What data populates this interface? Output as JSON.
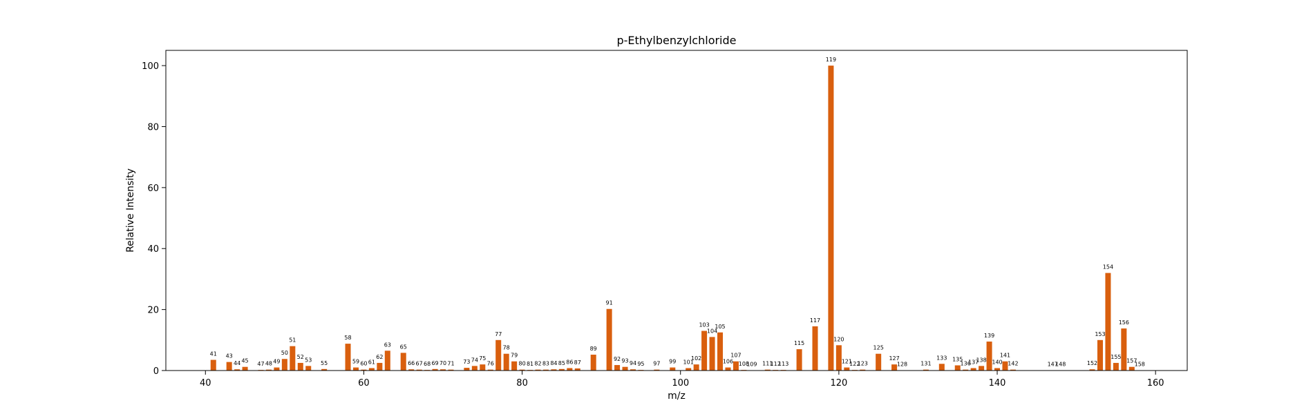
{
  "chart_data": {
    "type": "bar",
    "title": "p-Ethylbenzylchloride",
    "xlabel": "m/z",
    "ylabel": "Relative Intensity",
    "xlim": [
      35,
      164
    ],
    "ylim": [
      0,
      105
    ],
    "xticks": [
      "40",
      "60",
      "80",
      "100",
      "120",
      "140",
      "160"
    ],
    "yticks": [
      "0",
      "20",
      "40",
      "60",
      "80",
      "100"
    ],
    "grid": false,
    "bar_color": "#d95f0e",
    "series": [
      {
        "x": [
          41,
          43,
          44,
          45,
          47,
          48,
          49,
          50,
          51,
          52,
          53,
          55,
          58,
          59,
          60,
          61,
          62,
          63,
          65,
          66,
          67,
          68,
          69,
          70,
          71,
          73,
          74,
          75,
          76,
          77,
          78,
          79,
          80,
          81,
          82,
          83,
          84,
          85,
          86,
          87,
          89,
          91,
          92,
          93,
          94,
          95,
          97,
          99,
          101,
          102,
          103,
          104,
          105,
          106,
          107,
          108,
          109,
          111,
          112,
          113,
          115,
          117,
          119,
          120,
          121,
          122,
          123,
          125,
          127,
          128,
          131,
          133,
          135,
          136,
          137,
          138,
          139,
          140,
          141,
          142,
          147,
          148,
          152,
          153,
          154,
          155,
          156,
          157,
          158
        ],
        "values": [
          3.5,
          2.8,
          0.4,
          1.2,
          0.2,
          0.3,
          1.0,
          3.8,
          8.0,
          2.5,
          1.5,
          0.5,
          8.8,
          1.0,
          0.3,
          0.8,
          2.5,
          6.5,
          5.8,
          0.4,
          0.3,
          0.2,
          0.5,
          0.4,
          0.3,
          0.9,
          1.5,
          2.0,
          0.3,
          10.0,
          5.5,
          3.0,
          0.3,
          0.2,
          0.3,
          0.3,
          0.4,
          0.5,
          0.8,
          0.7,
          5.2,
          20.2,
          1.8,
          1.2,
          0.4,
          0.2,
          0.3,
          1.0,
          0.8,
          2.0,
          13.0,
          11.0,
          12.5,
          1.0,
          3.0,
          0.2,
          0.1,
          0.3,
          0.2,
          0.2,
          7.0,
          14.5,
          100,
          8.3,
          1.0,
          0.2,
          0.3,
          5.5,
          2.0,
          0.1,
          0.3,
          2.2,
          1.7,
          0.3,
          0.8,
          1.5,
          9.5,
          0.8,
          3.0,
          0.3,
          0.1,
          0.1,
          0.4,
          10.0,
          32.0,
          2.5,
          13.8,
          1.2,
          0.1
        ]
      }
    ]
  }
}
